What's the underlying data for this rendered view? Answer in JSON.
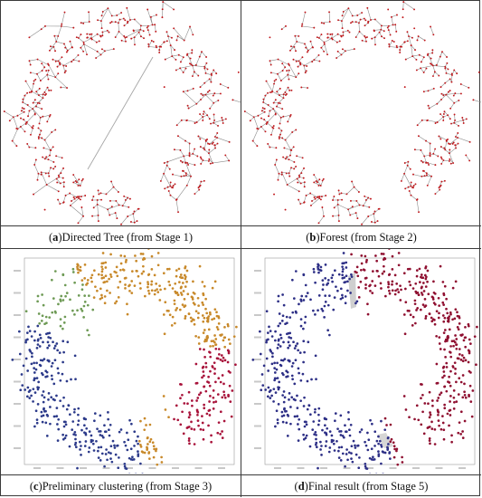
{
  "panels": [
    {
      "id": "a",
      "letter": "a",
      "caption": " Directed Tree (from Stage 1)"
    },
    {
      "id": "b",
      "letter": "b",
      "caption": " Forest (from Stage 2)"
    },
    {
      "id": "c",
      "letter": "c",
      "caption": " Preliminary clustering (from Stage 3)"
    },
    {
      "id": "d",
      "letter": "d",
      "caption": " Final result (from Stage 5)"
    }
  ],
  "colors": {
    "tree_node": "#c0161a",
    "tree_edge": "#8c8c8c",
    "cluster_blue": "#2c3a8a",
    "cluster_orange": "#c8892a",
    "cluster_green": "#6e9a55",
    "cluster_red": "#a8123a",
    "final_blue": "#2d2f86",
    "final_red": "#8f0f30"
  },
  "panel_c_clusters": [
    "cluster_blue",
    "cluster_orange",
    "cluster_green",
    "cluster_red"
  ],
  "panel_d_clusters": [
    "final_blue",
    "final_red"
  ]
}
